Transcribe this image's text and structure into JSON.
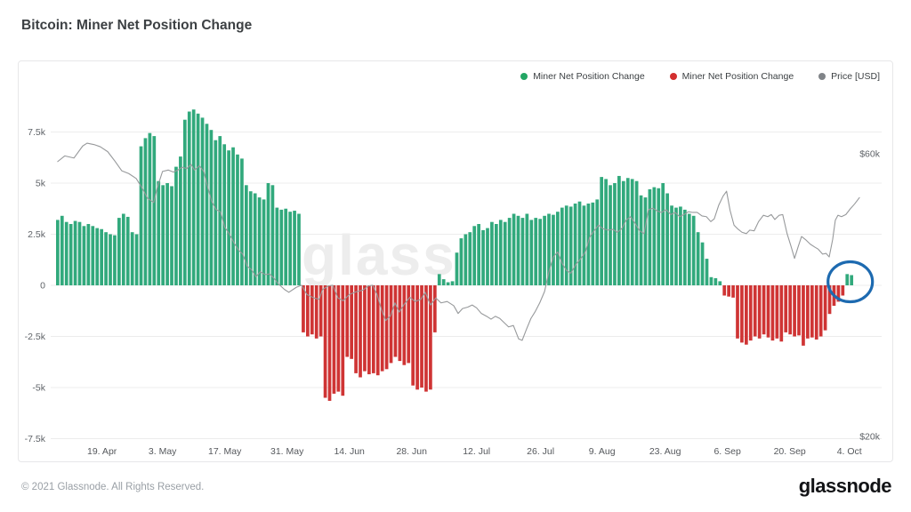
{
  "page": {
    "title": "Bitcoin: Miner Net Position Change",
    "footer": {
      "copyright": "© 2021 Glassnode. All Rights Reserved.",
      "brand": "glassnode"
    }
  },
  "legend": [
    {
      "label": "Miner Net Position Change",
      "color": "#23a664",
      "series": "positive"
    },
    {
      "label": "Miner Net Position Change",
      "color": "#d32f2f",
      "series": "negative"
    },
    {
      "label": "Price [USD]",
      "color": "#808488",
      "series": "price"
    }
  ],
  "watermark": "glass",
  "annotation": {
    "shape": "ellipse",
    "color": "#1d6ab0",
    "around_bar_index": 180.7,
    "note": "final two positive miner bars circled"
  },
  "chart_data": {
    "type": "bar+line",
    "title": "Bitcoin: Miner Net Position Change",
    "grid": true,
    "colors": {
      "positive": "#31a97c",
      "negative": "#cf3434",
      "price_line": "#97999b",
      "gridline": "#ececec"
    },
    "left_axis": {
      "unit": "BTC",
      "ticks": [
        "7.5k",
        "5k",
        "2.5k",
        "0",
        "-2.5k",
        "-5k",
        "-7.5k"
      ],
      "tick_values": [
        7.5,
        5,
        2.5,
        0,
        -2.5,
        -5,
        -7.5
      ]
    },
    "right_axis": {
      "unit": "USD",
      "ticks": [
        "$60k",
        "$20k"
      ],
      "tick_values": [
        60,
        20
      ]
    },
    "x_axis": {
      "ticks": [
        {
          "label": "19. Apr",
          "i": 10.1
        },
        {
          "label": "3. May",
          "i": 23.9
        },
        {
          "label": "17. May",
          "i": 38.1
        },
        {
          "label": "31. May",
          "i": 52.3
        },
        {
          "label": "14. Jun",
          "i": 66.5
        },
        {
          "label": "28. Jun",
          "i": 80.7
        },
        {
          "label": "12. Jul",
          "i": 95.5
        },
        {
          "label": "26. Jul",
          "i": 110.1
        },
        {
          "label": "9. Aug",
          "i": 124.1
        },
        {
          "label": "23. Aug",
          "i": 138.5
        },
        {
          "label": "6. Sep",
          "i": 152.7
        },
        {
          "label": "20. Sep",
          "i": 166.9
        },
        {
          "label": "4. Oct",
          "i": 180.5
        }
      ]
    },
    "bars": {
      "name": "Miner Net Position Change",
      "unit": "k BTC per day",
      "values": [
        3.2,
        3.4,
        3.1,
        3.0,
        3.15,
        3.1,
        2.9,
        3.0,
        2.9,
        2.8,
        2.75,
        2.6,
        2.5,
        2.45,
        3.3,
        3.5,
        3.35,
        2.6,
        2.5,
        6.8,
        7.2,
        7.45,
        7.3,
        5.1,
        4.9,
        5.0,
        4.85,
        5.8,
        6.3,
        8.1,
        8.5,
        8.6,
        8.4,
        8.2,
        7.9,
        7.6,
        7.1,
        7.3,
        6.9,
        6.6,
        6.75,
        6.4,
        6.2,
        4.9,
        4.6,
        4.5,
        4.3,
        4.2,
        5.0,
        4.9,
        3.8,
        3.7,
        3.75,
        3.6,
        3.65,
        3.5,
        -2.3,
        -2.5,
        -2.4,
        -2.6,
        -2.5,
        -5.5,
        -5.65,
        -5.3,
        -5.2,
        -5.4,
        -3.5,
        -3.6,
        -4.3,
        -4.5,
        -4.2,
        -4.35,
        -4.3,
        -4.4,
        -4.2,
        -4.1,
        -3.8,
        -3.5,
        -3.7,
        -3.9,
        -3.8,
        -4.9,
        -5.1,
        -5.0,
        -5.2,
        -5.1,
        -2.3,
        0.55,
        0.3,
        0.15,
        0.2,
        1.6,
        2.3,
        2.5,
        2.6,
        2.9,
        3.0,
        2.7,
        2.8,
        3.1,
        3.0,
        3.2,
        3.1,
        3.3,
        3.5,
        3.4,
        3.3,
        3.5,
        3.2,
        3.3,
        3.25,
        3.4,
        3.5,
        3.45,
        3.6,
        3.8,
        3.9,
        3.85,
        4.0,
        4.1,
        3.9,
        4.0,
        4.05,
        4.2,
        5.3,
        5.2,
        4.9,
        5.0,
        5.35,
        5.1,
        5.25,
        5.2,
        5.1,
        4.4,
        4.3,
        4.7,
        4.8,
        4.75,
        5.0,
        4.5,
        3.9,
        3.8,
        3.85,
        3.7,
        3.5,
        3.4,
        2.6,
        2.1,
        1.3,
        0.4,
        0.35,
        0.2,
        -0.5,
        -0.55,
        -0.6,
        -2.6,
        -2.8,
        -2.9,
        -2.7,
        -2.5,
        -2.6,
        -2.4,
        -2.55,
        -2.7,
        -2.6,
        -2.75,
        -2.3,
        -2.4,
        -2.5,
        -2.45,
        -2.95,
        -2.6,
        -2.55,
        -2.65,
        -2.5,
        -2.2,
        -1.4,
        -1.0,
        -0.8,
        -0.5,
        0.55,
        0.5
      ]
    },
    "price": {
      "name": "Price [USD]",
      "unit": "$k",
      "points": [
        [
          0,
          58.9
        ],
        [
          1.6,
          59.7
        ],
        [
          3.7,
          59.4
        ],
        [
          5.7,
          61.1
        ],
        [
          6.7,
          61.5
        ],
        [
          8.3,
          61.3
        ],
        [
          9.7,
          61.0
        ],
        [
          11.4,
          60.3
        ],
        [
          13.0,
          59.0
        ],
        [
          14.6,
          57.6
        ],
        [
          16.2,
          57.2
        ],
        [
          17.9,
          56.5
        ],
        [
          19.3,
          55.1
        ],
        [
          20.5,
          53.7
        ],
        [
          21.9,
          53.1
        ],
        [
          22.7,
          55.2
        ],
        [
          23.9,
          57.5
        ],
        [
          25.2,
          57.7
        ],
        [
          26.4,
          57.4
        ],
        [
          27.4,
          57.7
        ],
        [
          28.4,
          58.1
        ],
        [
          29.4,
          57.9
        ],
        [
          30.4,
          58.5
        ],
        [
          31.2,
          57.7
        ],
        [
          32.3,
          58.3
        ],
        [
          33.3,
          57.5
        ],
        [
          34.1,
          55.5
        ],
        [
          35.1,
          53.3
        ],
        [
          36.1,
          52.1
        ],
        [
          37.1,
          51.8
        ],
        [
          38.1,
          49.6
        ],
        [
          39.1,
          48.7
        ],
        [
          40.2,
          47.4
        ],
        [
          41.2,
          46.4
        ],
        [
          42.2,
          45.8
        ],
        [
          43.2,
          44.1
        ],
        [
          44.2,
          43.6
        ],
        [
          45.2,
          42.6
        ],
        [
          46.2,
          43.3
        ],
        [
          47.3,
          42.9
        ],
        [
          48.3,
          43.0
        ],
        [
          49.3,
          42.4
        ],
        [
          50.3,
          41.6
        ],
        [
          51.7,
          40.8
        ],
        [
          52.7,
          40.4
        ],
        [
          54.4,
          41.1
        ],
        [
          55.6,
          41.4
        ],
        [
          56.8,
          40.1
        ],
        [
          58.4,
          39.6
        ],
        [
          59.6,
          39.4
        ],
        [
          60.4,
          40.8
        ],
        [
          61.7,
          41.3
        ],
        [
          62.7,
          41.4
        ],
        [
          63.9,
          39.6
        ],
        [
          65.1,
          39.2
        ],
        [
          66.5,
          40.1
        ],
        [
          68.2,
          40.5
        ],
        [
          69.6,
          40.7
        ],
        [
          70.8,
          41.3
        ],
        [
          71.8,
          41.4
        ],
        [
          72.8,
          40.1
        ],
        [
          73.8,
          38.0
        ],
        [
          74.8,
          36.4
        ],
        [
          75.9,
          37.1
        ],
        [
          76.9,
          38.9
        ],
        [
          77.9,
          37.6
        ],
        [
          78.9,
          38.6
        ],
        [
          80.3,
          39.7
        ],
        [
          81.5,
          39.1
        ],
        [
          82.8,
          39.4
        ],
        [
          83.8,
          40.4
        ],
        [
          85.0,
          38.6
        ],
        [
          86.2,
          39.6
        ],
        [
          87.4,
          38.9
        ],
        [
          88.8,
          39.1
        ],
        [
          90.3,
          38.5
        ],
        [
          91.3,
          37.4
        ],
        [
          92.3,
          38.1
        ],
        [
          93.5,
          38.3
        ],
        [
          94.5,
          38.6
        ],
        [
          95.5,
          38.2
        ],
        [
          96.6,
          37.4
        ],
        [
          97.8,
          37.0
        ],
        [
          98.8,
          36.6
        ],
        [
          99.8,
          37.0
        ],
        [
          100.8,
          36.7
        ],
        [
          101.8,
          36.1
        ],
        [
          102.8,
          35.5
        ],
        [
          103.9,
          35.7
        ],
        [
          105.1,
          33.8
        ],
        [
          105.9,
          33.6
        ],
        [
          106.9,
          35.2
        ],
        [
          107.9,
          36.7
        ],
        [
          108.9,
          37.7
        ],
        [
          109.9,
          38.9
        ],
        [
          111.0,
          40.5
        ],
        [
          112.0,
          43.3
        ],
        [
          113.0,
          45.4
        ],
        [
          114.0,
          46.1
        ],
        [
          115.0,
          44.5
        ],
        [
          116.0,
          43.5
        ],
        [
          117.0,
          43.1
        ],
        [
          118.1,
          44.3
        ],
        [
          119.3,
          45.2
        ],
        [
          120.3,
          46.1
        ],
        [
          121.3,
          48.2
        ],
        [
          122.3,
          49.1
        ],
        [
          123.3,
          49.9
        ],
        [
          124.3,
          49.4
        ],
        [
          125.6,
          49.2
        ],
        [
          126.6,
          49.3
        ],
        [
          127.6,
          48.9
        ],
        [
          128.6,
          49.4
        ],
        [
          129.6,
          50.6
        ],
        [
          130.6,
          51.1
        ],
        [
          131.6,
          50.2
        ],
        [
          132.7,
          49.1
        ],
        [
          133.7,
          48.7
        ],
        [
          134.7,
          52.1
        ],
        [
          135.7,
          52.3
        ],
        [
          136.7,
          51.9
        ],
        [
          137.7,
          51.7
        ],
        [
          138.7,
          52.1
        ],
        [
          139.8,
          51.4
        ],
        [
          140.8,
          51.7
        ],
        [
          141.8,
          51.1
        ],
        [
          142.8,
          51.4
        ],
        [
          143.8,
          51.8
        ],
        [
          144.8,
          51.7
        ],
        [
          145.8,
          51.7
        ],
        [
          146.9,
          51.2
        ],
        [
          147.9,
          51.1
        ],
        [
          148.9,
          50.4
        ],
        [
          149.7,
          50.8
        ],
        [
          150.7,
          52.7
        ],
        [
          151.7,
          54.0
        ],
        [
          152.5,
          54.7
        ],
        [
          153.3,
          52.0
        ],
        [
          154.2,
          49.9
        ],
        [
          155.0,
          49.4
        ],
        [
          156.0,
          48.9
        ],
        [
          157.0,
          48.7
        ],
        [
          157.8,
          49.2
        ],
        [
          158.8,
          49.1
        ],
        [
          159.8,
          50.4
        ],
        [
          160.9,
          51.3
        ],
        [
          161.9,
          51.1
        ],
        [
          162.7,
          51.4
        ],
        [
          163.5,
          50.7
        ],
        [
          164.5,
          51.3
        ],
        [
          165.3,
          51.4
        ],
        [
          166.3,
          48.7
        ],
        [
          167.3,
          46.7
        ],
        [
          168.0,
          45.2
        ],
        [
          168.8,
          46.8
        ],
        [
          169.6,
          48.3
        ],
        [
          170.6,
          47.8
        ],
        [
          171.6,
          47.2
        ],
        [
          172.6,
          46.8
        ],
        [
          173.4,
          46.5
        ],
        [
          174.4,
          45.8
        ],
        [
          175.2,
          45.9
        ],
        [
          175.9,
          45.4
        ],
        [
          176.7,
          47.9
        ],
        [
          177.3,
          50.6
        ],
        [
          177.9,
          51.3
        ],
        [
          178.7,
          51.1
        ],
        [
          179.7,
          51.4
        ],
        [
          180.7,
          52.2
        ],
        [
          181.7,
          52.9
        ],
        [
          182.8,
          53.8
        ]
      ]
    }
  }
}
